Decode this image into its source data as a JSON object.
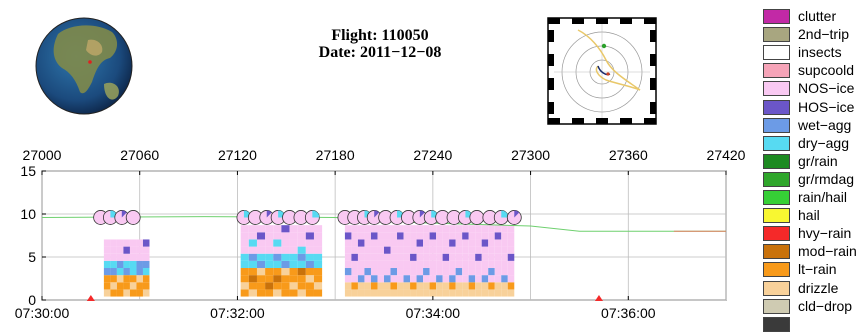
{
  "header": {
    "flight_label": "Flight: 110050",
    "date_label": "Date: 2011−12−08"
  },
  "legend": {
    "items": [
      {
        "label": "clutter",
        "color": "#c229a6"
      },
      {
        "label": "2nd−trip",
        "color": "#a8a680"
      },
      {
        "label": "insects",
        "color": "#ffffff"
      },
      {
        "label": "supcoold",
        "color": "#f6a4b8"
      },
      {
        "label": "NOS−ice",
        "color": "#f9c9f2"
      },
      {
        "label": "HOS−ice",
        "color": "#6b56c8"
      },
      {
        "label": "wet−agg",
        "color": "#6c9be6"
      },
      {
        "label": "dry−agg",
        "color": "#57daf2"
      },
      {
        "label": "gr/rain",
        "color": "#1d8a21"
      },
      {
        "label": "gr/rmdag",
        "color": "#2fa62b"
      },
      {
        "label": "rain/hail",
        "color": "#36cf36"
      },
      {
        "label": "hail",
        "color": "#f8f731"
      },
      {
        "label": "hvy−rain",
        "color": "#f52929"
      },
      {
        "label": "mod−rain",
        "color": "#c9720b"
      },
      {
        "label": "lt−rain",
        "color": "#f89a1a"
      },
      {
        "label": "drizzle",
        "color": "#f8d19a"
      },
      {
        "label": "cld−drop",
        "color": "#cfcbb2"
      },
      {
        "label": "",
        "color": "#3a3a3a"
      }
    ]
  },
  "chart_data": {
    "type": "heatmap",
    "top_axis": {
      "label": "",
      "range": [
        27000,
        27420
      ],
      "ticks": [
        27000,
        27060,
        27120,
        27180,
        27240,
        27300,
        27360,
        27420
      ]
    },
    "bottom_axis": {
      "label": "",
      "range_seconds": [
        27000,
        27420
      ],
      "ticks": [
        {
          "value": 27000,
          "label": "07:30:00"
        },
        {
          "value": 27120,
          "label": "07:32:00"
        },
        {
          "value": 27240,
          "label": "07:34:00"
        },
        {
          "value": 27360,
          "label": "07:36:00"
        }
      ]
    },
    "y_axis": {
      "label": "",
      "range": [
        0,
        15
      ],
      "ticks": [
        0,
        5,
        10,
        15
      ]
    },
    "grid": true,
    "altitude_line": {
      "color": "#6fd06f",
      "points": [
        [
          27000,
          9.6
        ],
        [
          27100,
          9.7
        ],
        [
          27180,
          9.6
        ],
        [
          27230,
          9.0
        ],
        [
          27300,
          8.6
        ],
        [
          27330,
          8.0
        ],
        [
          27420,
          8.0
        ]
      ],
      "tail_color": "#e08060",
      "tail_start": 27388
    },
    "markers": [
      {
        "x": 27030,
        "color": "#f52929"
      },
      {
        "x": 27342,
        "color": "#f52929"
      }
    ],
    "pie_markers": {
      "y": 9.6,
      "x": [
        27036,
        27042,
        27049,
        27056,
        27124,
        27131,
        27138,
        27145,
        27152,
        27159,
        27166,
        27186,
        27192,
        27198,
        27204,
        27211,
        27218,
        27225,
        27232,
        27239,
        27246,
        27253,
        27260,
        27267,
        27275,
        27282,
        27290
      ]
    },
    "columns": [
      {
        "x0": 27038,
        "x1": 27042,
        "cls": [
          "drizzle",
          "lt-rain",
          "lt-rain",
          "wet-agg",
          "dry-agg",
          "NOS-ice",
          "NOS-ice",
          "NOS-ice"
        ]
      },
      {
        "x0": 27042,
        "x1": 27046,
        "cls": [
          "lt-rain",
          "drizzle",
          "lt-rain",
          "wet-agg",
          "dry-agg",
          "NOS-ice",
          "NOS-ice",
          "NOS-ice"
        ]
      },
      {
        "x0": 27046,
        "x1": 27050,
        "cls": [
          "lt-rain",
          "lt-rain",
          "drizzle",
          "dry-agg",
          "wet-agg",
          "NOS-ice",
          "NOS-ice",
          "NOS-ice"
        ]
      },
      {
        "x0": 27050,
        "x1": 27054,
        "cls": [
          "drizzle",
          "lt-rain",
          "lt-rain",
          "wet-agg",
          "dry-agg",
          "NOS-ice",
          "HOS-ice",
          "NOS-ice"
        ]
      },
      {
        "x0": 27054,
        "x1": 27058,
        "cls": [
          "lt-rain",
          "drizzle",
          "lt-rain",
          "dry-agg",
          "dry-agg",
          "NOS-ice",
          "NOS-ice",
          "NOS-ice"
        ]
      },
      {
        "x0": 27058,
        "x1": 27062,
        "cls": [
          "lt-rain",
          "lt-rain",
          "drizzle",
          "wet-agg",
          "wet-agg",
          "NOS-ice",
          "NOS-ice",
          "NOS-ice"
        ]
      },
      {
        "x0": 27062,
        "x1": 27066,
        "cls": [
          "drizzle",
          "lt-rain",
          "lt-rain",
          "dry-agg",
          "wet-agg",
          "NOS-ice",
          "NOS-ice",
          "HOS-ice"
        ]
      },
      {
        "x0": 27122,
        "x1": 27127,
        "cls": [
          "lt-rain",
          "drizzle",
          "lt-rain",
          "lt-rain",
          "dry-agg",
          "dry-agg",
          "NOS-ice",
          "NOS-ice",
          "NOS-ice",
          "NOS-ice"
        ]
      },
      {
        "x0": 27127,
        "x1": 27132,
        "cls": [
          "drizzle",
          "lt-rain",
          "mod-rain",
          "lt-rain",
          "dry-agg",
          "wet-agg",
          "NOS-ice",
          "dry-agg",
          "NOS-ice",
          "NOS-ice"
        ]
      },
      {
        "x0": 27132,
        "x1": 27137,
        "cls": [
          "lt-rain",
          "lt-rain",
          "lt-rain",
          "drizzle",
          "wet-agg",
          "dry-agg",
          "NOS-ice",
          "NOS-ice",
          "HOS-ice",
          "NOS-ice"
        ]
      },
      {
        "x0": 27137,
        "x1": 27142,
        "cls": [
          "lt-rain",
          "mod-rain",
          "lt-rain",
          "lt-rain",
          "dry-agg",
          "dry-agg",
          "NOS-ice",
          "NOS-ice",
          "NOS-ice",
          "NOS-ice"
        ]
      },
      {
        "x0": 27142,
        "x1": 27147,
        "cls": [
          "drizzle",
          "lt-rain",
          "mod-rain",
          "lt-rain",
          "dry-agg",
          "wet-agg",
          "NOS-ice",
          "dry-agg",
          "NOS-ice",
          "NOS-ice"
        ]
      },
      {
        "x0": 27147,
        "x1": 27152,
        "cls": [
          "lt-rain",
          "lt-rain",
          "lt-rain",
          "drizzle",
          "wet-agg",
          "dry-agg",
          "NOS-ice",
          "NOS-ice",
          "NOS-ice",
          "HOS-ice"
        ]
      },
      {
        "x0": 27152,
        "x1": 27157,
        "cls": [
          "lt-rain",
          "drizzle",
          "lt-rain",
          "lt-rain",
          "dry-agg",
          "dry-agg",
          "NOS-ice",
          "NOS-ice",
          "NOS-ice",
          "NOS-ice"
        ]
      },
      {
        "x0": 27157,
        "x1": 27162,
        "cls": [
          "drizzle",
          "lt-rain",
          "lt-rain",
          "mod-rain",
          "dry-agg",
          "wet-agg",
          "dry-agg",
          "NOS-ice",
          "NOS-ice",
          "NOS-ice"
        ]
      },
      {
        "x0": 27162,
        "x1": 27167,
        "cls": [
          "lt-rain",
          "lt-rain",
          "drizzle",
          "lt-rain",
          "wet-agg",
          "dry-agg",
          "NOS-ice",
          "NOS-ice",
          "HOS-ice",
          "NOS-ice"
        ]
      },
      {
        "x0": 27167,
        "x1": 27172,
        "cls": [
          "lt-rain",
          "drizzle",
          "lt-rain",
          "lt-rain",
          "dry-agg",
          "dry-agg",
          "NOS-ice",
          "NOS-ice",
          "NOS-ice",
          "NOS-ice"
        ]
      },
      {
        "x0": 27186,
        "x1": 27190,
        "cls": [
          "drizzle",
          "drizzle",
          "NOS-ice",
          "wet-agg",
          "NOS-ice",
          "NOS-ice",
          "NOS-ice",
          "NOS-ice",
          "HOS-ice",
          "NOS-ice"
        ]
      },
      {
        "x0": 27190,
        "x1": 27194,
        "cls": [
          "drizzle",
          "lt-rain",
          "NOS-ice",
          "NOS-ice",
          "NOS-ice",
          "HOS-ice",
          "NOS-ice",
          "NOS-ice",
          "NOS-ice",
          "NOS-ice"
        ]
      },
      {
        "x0": 27194,
        "x1": 27198,
        "cls": [
          "drizzle",
          "drizzle",
          "wet-agg",
          "NOS-ice",
          "NOS-ice",
          "NOS-ice",
          "NOS-ice",
          "HOS-ice",
          "NOS-ice",
          "NOS-ice"
        ]
      },
      {
        "x0": 27198,
        "x1": 27202,
        "cls": [
          "drizzle",
          "drizzle",
          "NOS-ice",
          "wet-agg",
          "NOS-ice",
          "NOS-ice",
          "NOS-ice",
          "NOS-ice",
          "NOS-ice",
          "NOS-ice"
        ]
      },
      {
        "x0": 27202,
        "x1": 27206,
        "cls": [
          "drizzle",
          "lt-rain",
          "wet-agg",
          "NOS-ice",
          "NOS-ice",
          "NOS-ice",
          "NOS-ice",
          "NOS-ice",
          "HOS-ice",
          "NOS-ice"
        ]
      },
      {
        "x0": 27206,
        "x1": 27210,
        "cls": [
          "drizzle",
          "drizzle",
          "NOS-ice",
          "NOS-ice",
          "NOS-ice",
          "NOS-ice",
          "NOS-ice",
          "NOS-ice",
          "NOS-ice",
          "NOS-ice"
        ]
      },
      {
        "x0": 27210,
        "x1": 27214,
        "cls": [
          "drizzle",
          "drizzle",
          "wet-agg",
          "NOS-ice",
          "NOS-ice",
          "NOS-ice",
          "HOS-ice",
          "NOS-ice",
          "NOS-ice",
          "NOS-ice"
        ]
      },
      {
        "x0": 27214,
        "x1": 27218,
        "cls": [
          "drizzle",
          "lt-rain",
          "NOS-ice",
          "wet-agg",
          "NOS-ice",
          "NOS-ice",
          "NOS-ice",
          "NOS-ice",
          "NOS-ice",
          "NOS-ice"
        ]
      },
      {
        "x0": 27218,
        "x1": 27222,
        "cls": [
          "drizzle",
          "drizzle",
          "NOS-ice",
          "NOS-ice",
          "NOS-ice",
          "NOS-ice",
          "NOS-ice",
          "NOS-ice",
          "HOS-ice",
          "NOS-ice"
        ]
      },
      {
        "x0": 27222,
        "x1": 27226,
        "cls": [
          "drizzle",
          "drizzle",
          "wet-agg",
          "NOS-ice",
          "NOS-ice",
          "NOS-ice",
          "NOS-ice",
          "NOS-ice",
          "NOS-ice",
          "NOS-ice"
        ]
      },
      {
        "x0": 27226,
        "x1": 27230,
        "cls": [
          "drizzle",
          "lt-rain",
          "NOS-ice",
          "NOS-ice",
          "NOS-ice",
          "HOS-ice",
          "NOS-ice",
          "NOS-ice",
          "NOS-ice",
          "NOS-ice"
        ]
      },
      {
        "x0": 27230,
        "x1": 27234,
        "cls": [
          "drizzle",
          "drizzle",
          "wet-agg",
          "NOS-ice",
          "NOS-ice",
          "NOS-ice",
          "NOS-ice",
          "HOS-ice",
          "NOS-ice",
          "NOS-ice"
        ]
      },
      {
        "x0": 27234,
        "x1": 27238,
        "cls": [
          "drizzle",
          "drizzle",
          "NOS-ice",
          "wet-agg",
          "NOS-ice",
          "NOS-ice",
          "NOS-ice",
          "NOS-ice",
          "NOS-ice",
          "NOS-ice"
        ]
      },
      {
        "x0": 27238,
        "x1": 27242,
        "cls": [
          "drizzle",
          "lt-rain",
          "NOS-ice",
          "NOS-ice",
          "NOS-ice",
          "NOS-ice",
          "NOS-ice",
          "NOS-ice",
          "HOS-ice",
          "NOS-ice"
        ]
      },
      {
        "x0": 27242,
        "x1": 27246,
        "cls": [
          "drizzle",
          "drizzle",
          "wet-agg",
          "NOS-ice",
          "NOS-ice",
          "NOS-ice",
          "NOS-ice",
          "NOS-ice",
          "NOS-ice",
          "NOS-ice"
        ]
      },
      {
        "x0": 27246,
        "x1": 27250,
        "cls": [
          "drizzle",
          "drizzle",
          "NOS-ice",
          "NOS-ice",
          "NOS-ice",
          "HOS-ice",
          "NOS-ice",
          "NOS-ice",
          "NOS-ice",
          "NOS-ice"
        ]
      },
      {
        "x0": 27250,
        "x1": 27254,
        "cls": [
          "drizzle",
          "lt-rain",
          "wet-agg",
          "NOS-ice",
          "NOS-ice",
          "NOS-ice",
          "NOS-ice",
          "HOS-ice",
          "NOS-ice",
          "NOS-ice"
        ]
      },
      {
        "x0": 27254,
        "x1": 27258,
        "cls": [
          "drizzle",
          "drizzle",
          "NOS-ice",
          "wet-agg",
          "NOS-ice",
          "NOS-ice",
          "NOS-ice",
          "NOS-ice",
          "NOS-ice",
          "NOS-ice"
        ]
      },
      {
        "x0": 27258,
        "x1": 27262,
        "cls": [
          "drizzle",
          "drizzle",
          "NOS-ice",
          "NOS-ice",
          "NOS-ice",
          "NOS-ice",
          "NOS-ice",
          "NOS-ice",
          "HOS-ice",
          "NOS-ice"
        ]
      },
      {
        "x0": 27262,
        "x1": 27266,
        "cls": [
          "drizzle",
          "lt-rain",
          "wet-agg",
          "NOS-ice",
          "NOS-ice",
          "NOS-ice",
          "NOS-ice",
          "NOS-ice",
          "NOS-ice",
          "NOS-ice"
        ]
      },
      {
        "x0": 27266,
        "x1": 27270,
        "cls": [
          "drizzle",
          "drizzle",
          "NOS-ice",
          "NOS-ice",
          "NOS-ice",
          "HOS-ice",
          "NOS-ice",
          "NOS-ice",
          "NOS-ice",
          "NOS-ice"
        ]
      },
      {
        "x0": 27270,
        "x1": 27274,
        "cls": [
          "drizzle",
          "drizzle",
          "wet-agg",
          "NOS-ice",
          "NOS-ice",
          "NOS-ice",
          "NOS-ice",
          "HOS-ice",
          "NOS-ice",
          "NOS-ice"
        ]
      },
      {
        "x0": 27274,
        "x1": 27278,
        "cls": [
          "drizzle",
          "lt-rain",
          "NOS-ice",
          "wet-agg",
          "NOS-ice",
          "NOS-ice",
          "NOS-ice",
          "NOS-ice",
          "NOS-ice",
          "NOS-ice"
        ]
      },
      {
        "x0": 27278,
        "x1": 27282,
        "cls": [
          "drizzle",
          "drizzle",
          "NOS-ice",
          "NOS-ice",
          "NOS-ice",
          "NOS-ice",
          "NOS-ice",
          "NOS-ice",
          "HOS-ice",
          "NOS-ice"
        ]
      },
      {
        "x0": 27282,
        "x1": 27286,
        "cls": [
          "drizzle",
          "drizzle",
          "wet-agg",
          "NOS-ice",
          "NOS-ice",
          "NOS-ice",
          "NOS-ice",
          "NOS-ice",
          "NOS-ice",
          "NOS-ice"
        ]
      },
      {
        "x0": 27286,
        "x1": 27290,
        "cls": [
          "drizzle",
          "lt-rain",
          "NOS-ice",
          "NOS-ice",
          "NOS-ice",
          "HOS-ice",
          "NOS-ice",
          "NOS-ice",
          "NOS-ice",
          "NOS-ice"
        ]
      }
    ]
  }
}
